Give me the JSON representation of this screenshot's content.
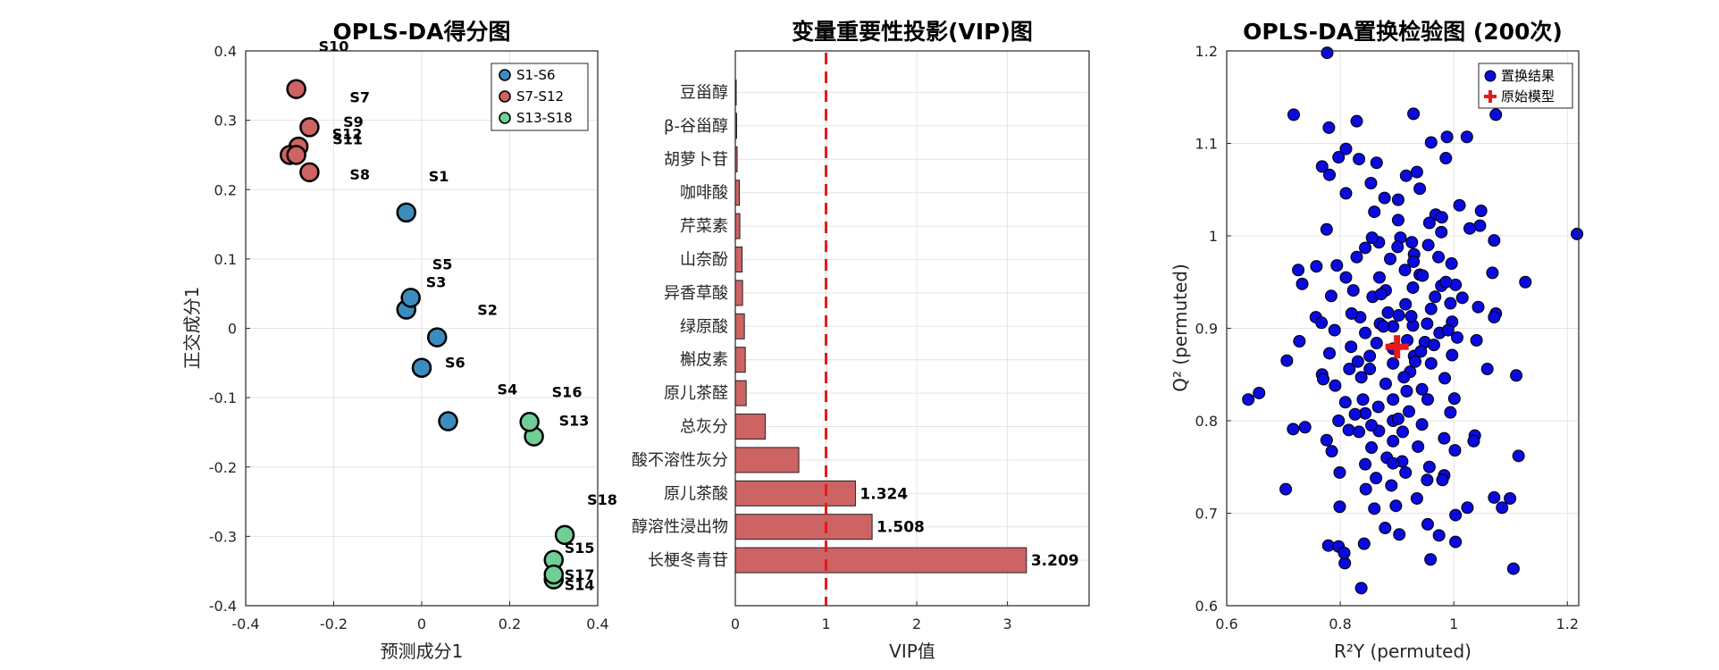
{
  "colors": {
    "group1": "#3d8cc0",
    "group2": "#cd6363",
    "group3": "#6fcf97",
    "bar": "#cd6363",
    "threshold": "#e31a1c",
    "permuted": "#0a0adc",
    "original": "#e41a1c"
  },
  "chart_data": [
    {
      "type": "scatter",
      "title": "OPLS-DA得分图",
      "xlabel": "预测成分1",
      "ylabel": "正交成分1",
      "xlim": [
        -0.4,
        0.4
      ],
      "ylim": [
        -0.4,
        0.4
      ],
      "xticks": [
        "-0.4",
        "-0.2",
        "0",
        "0.2",
        "0.4"
      ],
      "yticks": [
        "0.4",
        "0.3",
        "0.2",
        "0.1",
        "0",
        "-0.1",
        "-0.2",
        "-0.3",
        "-0.4"
      ],
      "grid": true,
      "legend_position": "top-right",
      "series": [
        {
          "name": "S1-S6",
          "points": [
            {
              "label": "S1",
              "x": -0.035,
              "y": 0.167
            },
            {
              "label": "S2",
              "x": 0.035,
              "y": -0.013
            },
            {
              "label": "S3",
              "x": -0.035,
              "y": 0.027
            },
            {
              "label": "S4",
              "x": 0.06,
              "y": -0.134
            },
            {
              "label": "S5",
              "x": -0.025,
              "y": 0.044
            },
            {
              "label": "S6",
              "x": 0.0,
              "y": -0.057
            }
          ]
        },
        {
          "name": "S7-S12",
          "points": [
            {
              "label": "S7",
              "x": -0.255,
              "y": 0.29
            },
            {
              "label": "S8",
              "x": -0.255,
              "y": 0.225
            },
            {
              "label": "S9",
              "x": -0.28,
              "y": 0.262
            },
            {
              "label": "S10",
              "x": -0.285,
              "y": 0.345
            },
            {
              "label": "S11",
              "x": -0.3,
              "y": 0.25
            },
            {
              "label": "S12",
              "x": -0.285,
              "y": 0.25
            }
          ]
        },
        {
          "name": "S13-S18",
          "points": [
            {
              "label": "S13",
              "x": 0.255,
              "y": -0.156
            },
            {
              "label": "S14",
              "x": 0.3,
              "y": -0.362
            },
            {
              "label": "S15",
              "x": 0.3,
              "y": -0.334
            },
            {
              "label": "S16",
              "x": 0.245,
              "y": -0.135
            },
            {
              "label": "S17",
              "x": 0.3,
              "y": -0.355
            },
            {
              "label": "S18",
              "x": 0.325,
              "y": -0.298
            }
          ]
        }
      ]
    },
    {
      "type": "bar",
      "orientation": "horizontal",
      "title": "变量重要性投影(VIP)图",
      "xlabel": "VIP值",
      "xlim": [
        0,
        3.9
      ],
      "xticks": [
        "0",
        "1",
        "2",
        "3"
      ],
      "threshold": 1,
      "grid": true,
      "categories": [
        "豆甾醇",
        "β-谷甾醇",
        "胡萝卜苷",
        "咖啡酸",
        "芹菜素",
        "山奈酚",
        "异香草酸",
        "绿原酸",
        "槲皮素",
        "原儿茶醛",
        "总灰分",
        "酸不溶性灰分",
        "原儿茶酸",
        "醇溶性浸出物",
        "长梗冬青苷"
      ],
      "values": [
        0.005,
        0.015,
        0.02,
        0.045,
        0.05,
        0.075,
        0.08,
        0.1,
        0.11,
        0.12,
        0.33,
        0.7,
        1.324,
        1.508,
        3.209
      ],
      "value_labels": [
        "",
        "",
        "",
        "",
        "",
        "",
        "",
        "",
        "",
        "",
        "",
        "",
        "1.324",
        "1.508",
        "3.209"
      ]
    },
    {
      "type": "scatter",
      "title": "OPLS-DA置换检验图 (200次)",
      "xlabel": "R²Y (permuted)",
      "ylabel": "Q² (permuted)",
      "xlim": [
        0.6,
        1.22
      ],
      "ylim": [
        0.6,
        1.2
      ],
      "xticks": [
        "0.6",
        "0.8",
        "1",
        "1.2"
      ],
      "yticks": [
        "1.2",
        "1.1",
        "1",
        "0.9",
        "0.8",
        "0.7",
        "0.6"
      ],
      "grid": true,
      "legend_position": "top-right",
      "series": [
        {
          "name": "置换结果",
          "marker": "circle",
          "n": 200,
          "points": [
            [
              0.777,
              1.198
            ],
            [
              0.718,
              1.131
            ],
            [
              0.829,
              1.124
            ],
            [
              0.929,
              1.132
            ],
            [
              1.074,
              1.131
            ],
            [
              0.78,
              1.117
            ],
            [
              0.988,
              1.107
            ],
            [
              0.96,
              1.101
            ],
            [
              1.023,
              1.107
            ],
            [
              0.81,
              1.094
            ],
            [
              0.797,
              1.085
            ],
            [
              0.833,
              1.083
            ],
            [
              0.864,
              1.079
            ],
            [
              0.986,
              1.084
            ],
            [
              0.935,
              1.069
            ],
            [
              0.768,
              1.075
            ],
            [
              0.916,
              1.065
            ],
            [
              0.781,
              1.066
            ],
            [
              0.854,
              1.057
            ],
            [
              0.94,
              1.051
            ],
            [
              0.81,
              1.046
            ],
            [
              0.878,
              1.041
            ],
            [
              0.902,
              1.039
            ],
            [
              0.968,
              1.023
            ],
            [
              1.01,
              1.033
            ],
            [
              1.048,
              1.027
            ],
            [
              0.86,
              1.026
            ],
            [
              0.979,
              1.02
            ],
            [
              0.902,
              1.017
            ],
            [
              1.046,
              1.011
            ],
            [
              0.957,
              1.014
            ],
            [
              1.028,
              1.008
            ],
            [
              0.906,
              0.998
            ],
            [
              1.071,
              0.995
            ],
            [
              0.868,
              0.993
            ],
            [
              0.926,
              0.993
            ],
            [
              0.978,
              1.004
            ],
            [
              1.217,
              1.002
            ],
            [
              0.776,
              1.007
            ],
            [
              0.955,
              0.99
            ],
            [
              0.844,
              0.987
            ],
            [
              0.901,
              0.988
            ],
            [
              0.829,
              0.977
            ],
            [
              0.93,
              0.98
            ],
            [
              0.973,
              0.977
            ],
            [
              0.888,
              0.975
            ],
            [
              0.929,
              0.972
            ],
            [
              0.996,
              0.97
            ],
            [
              0.726,
              0.963
            ],
            [
              0.914,
              0.963
            ],
            [
              0.758,
              0.967
            ],
            [
              0.794,
              0.968
            ],
            [
              1.068,
              0.96
            ],
            [
              0.94,
              0.958
            ],
            [
              0.81,
              0.955
            ],
            [
              0.869,
              0.955
            ],
            [
              0.733,
              0.948
            ],
            [
              0.978,
              0.946
            ],
            [
              0.928,
              0.944
            ],
            [
              0.88,
              0.941
            ],
            [
              0.823,
              0.941
            ],
            [
              1.003,
              0.947
            ],
            [
              1.126,
              0.95
            ],
            [
              0.857,
              0.934
            ],
            [
              0.784,
              0.935
            ],
            [
              0.967,
              0.934
            ],
            [
              0.915,
              0.926
            ],
            [
              0.994,
              0.927
            ],
            [
              1.043,
              0.923
            ],
            [
              0.884,
              0.917
            ],
            [
              0.96,
              0.921
            ],
            [
              1.074,
              0.916
            ],
            [
              0.903,
              0.914
            ],
            [
              0.997,
              0.907
            ],
            [
              0.835,
              0.912
            ],
            [
              0.757,
              0.912
            ],
            [
              0.953,
              0.905
            ],
            [
              0.87,
              0.905
            ],
            [
              0.928,
              0.903
            ],
            [
              0.893,
              0.902
            ],
            [
              0.975,
              0.895
            ],
            [
              0.844,
              0.895
            ],
            [
              0.79,
              0.898
            ],
            [
              1.006,
              0.89
            ],
            [
              0.918,
              0.887
            ],
            [
              0.949,
              0.885
            ],
            [
              0.864,
              0.884
            ],
            [
              0.728,
              0.886
            ],
            [
              0.819,
              0.88
            ],
            [
              0.893,
              0.878
            ],
            [
              0.781,
              0.873
            ],
            [
              0.997,
              0.871
            ],
            [
              0.93,
              0.87
            ],
            [
              0.852,
              0.87
            ],
            [
              0.706,
              0.865
            ],
            [
              0.96,
              0.862
            ],
            [
              0.893,
              0.862
            ],
            [
              0.816,
              0.856
            ],
            [
              0.852,
              0.856
            ],
            [
              0.923,
              0.853
            ],
            [
              0.768,
              0.85
            ],
            [
              0.837,
              0.847
            ],
            [
              0.984,
              0.846
            ],
            [
              1.11,
              0.849
            ],
            [
              0.88,
              0.84
            ],
            [
              0.917,
              0.832
            ],
            [
              0.944,
              0.834
            ],
            [
              0.791,
              0.838
            ],
            [
              0.657,
              0.83
            ],
            [
              0.638,
              0.823
            ],
            [
              0.84,
              0.823
            ],
            [
              0.893,
              0.823
            ],
            [
              0.954,
              0.823
            ],
            [
              0.867,
              0.815
            ],
            [
              0.921,
              0.81
            ],
            [
              0.994,
              0.809
            ],
            [
              0.844,
              0.808
            ],
            [
              0.797,
              0.8
            ],
            [
              0.893,
              0.8
            ],
            [
              0.944,
              0.796
            ],
            [
              0.815,
              0.79
            ],
            [
              0.868,
              0.789
            ],
            [
              0.738,
              0.793
            ],
            [
              0.717,
              0.791
            ],
            [
              0.91,
              0.788
            ],
            [
              0.833,
              0.788
            ],
            [
              1.037,
              0.784
            ],
            [
              0.983,
              0.781
            ],
            [
              0.776,
              0.779
            ],
            [
              0.893,
              0.778
            ],
            [
              0.937,
              0.772
            ],
            [
              0.855,
              0.771
            ],
            [
              1.035,
              0.778
            ],
            [
              0.785,
              0.767
            ],
            [
              0.882,
              0.76
            ],
            [
              0.909,
              0.756
            ],
            [
              1.002,
              0.768
            ],
            [
              1.114,
              0.762
            ],
            [
              0.957,
              0.75
            ],
            [
              0.844,
              0.753
            ],
            [
              0.915,
              0.744
            ],
            [
              0.863,
              0.738
            ],
            [
              0.799,
              0.744
            ],
            [
              0.983,
              0.741
            ],
            [
              0.89,
              0.73
            ],
            [
              0.845,
              0.726
            ],
            [
              0.98,
              0.736
            ],
            [
              0.704,
              0.726
            ],
            [
              0.935,
              0.716
            ],
            [
              1.071,
              0.717
            ],
            [
              1.099,
              0.716
            ],
            [
              0.898,
              0.708
            ],
            [
              1.024,
              0.706
            ],
            [
              0.799,
              0.707
            ],
            [
              0.86,
              0.705
            ],
            [
              1.085,
              0.706
            ],
            [
              0.954,
              0.688
            ],
            [
              0.879,
              0.684
            ],
            [
              1.003,
              0.698
            ],
            [
              0.904,
              0.677
            ],
            [
              0.842,
              0.667
            ],
            [
              0.779,
              0.665
            ],
            [
              0.797,
              0.664
            ],
            [
              0.974,
              0.676
            ],
            [
              1.003,
              0.669
            ],
            [
              0.808,
              0.646
            ],
            [
              1.105,
              0.64
            ],
            [
              0.807,
              0.657
            ],
            [
              0.959,
              0.65
            ],
            [
              0.837,
              0.619
            ],
            [
              0.945,
              0.957
            ],
            [
              0.99,
              0.898
            ],
            [
              0.872,
              0.937
            ],
            [
              1.001,
              0.824
            ],
            [
              0.767,
              0.906
            ],
            [
              0.912,
              0.847
            ],
            [
              0.856,
              0.998
            ],
            [
              0.942,
              0.875
            ],
            [
              1.071,
              0.912
            ],
            [
              0.809,
              0.82
            ],
            [
              0.986,
              0.95
            ],
            [
              0.902,
              0.802
            ],
            [
              0.831,
              0.864
            ],
            [
              0.925,
              0.913
            ],
            [
              1.059,
              0.856
            ],
            [
              0.953,
              0.736
            ],
            [
              0.876,
              0.902
            ],
            [
              0.82,
              0.916
            ],
            [
              0.965,
              0.882
            ],
            [
              0.855,
              0.795
            ],
            [
              1.04,
              0.887
            ],
            [
              0.77,
              0.845
            ],
            [
              0.932,
              0.864
            ],
            [
              0.893,
              0.754
            ],
            [
              1.015,
              0.933
            ],
            [
              0.826,
              0.807
            ]
          ]
        },
        {
          "name": "原始模型",
          "marker": "plus",
          "points": [
            [
              0.9,
              0.88
            ]
          ]
        }
      ]
    }
  ]
}
